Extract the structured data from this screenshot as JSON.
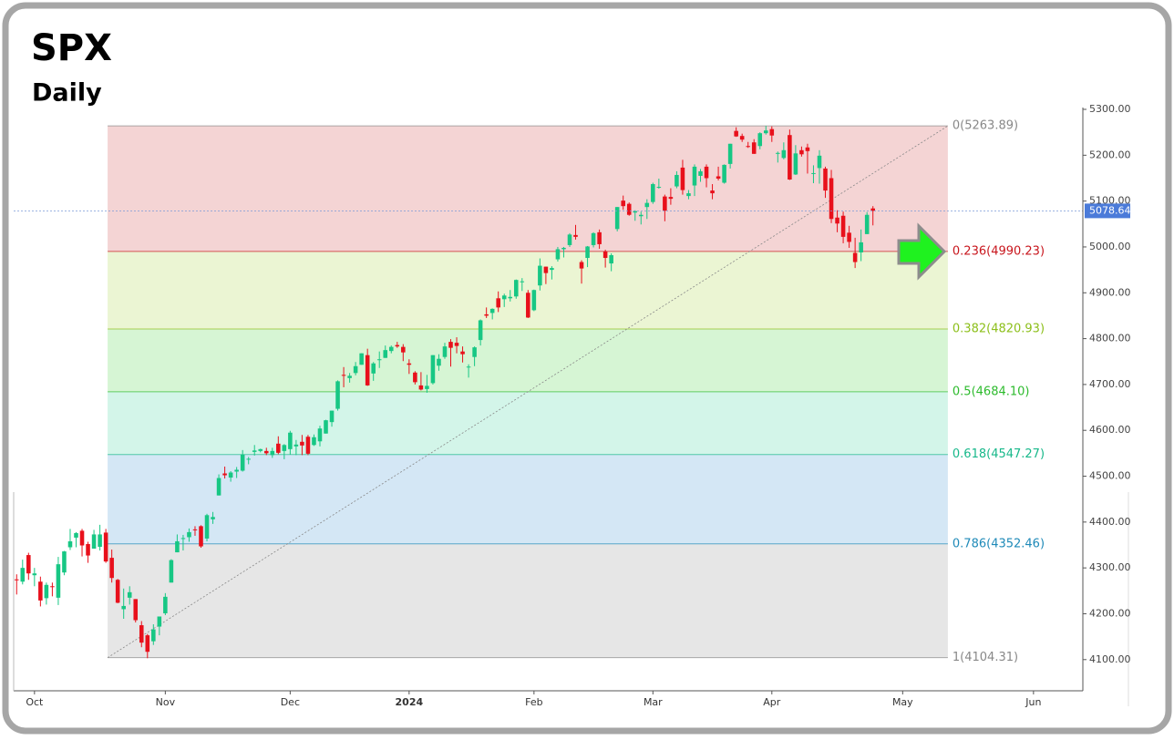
{
  "chart_data": {
    "type": "candlestick",
    "title": "SPX",
    "subtitle": "Daily",
    "up_color": "#17c784",
    "down_color": "#e8101b",
    "ylim": [
      4032,
      5304
    ],
    "yticks": [
      {
        "value": 4100,
        "label": "4100.00"
      },
      {
        "value": 4200,
        "label": "4200.00"
      },
      {
        "value": 4300,
        "label": "4300.00"
      },
      {
        "value": 4400,
        "label": "4400.00"
      },
      {
        "value": 4500,
        "label": "4500.00"
      },
      {
        "value": 4600,
        "label": "4600.00"
      },
      {
        "value": 4700,
        "label": "4700.00"
      },
      {
        "value": 4800,
        "label": "4800.00"
      },
      {
        "value": 4900,
        "label": "4900.00"
      },
      {
        "value": 5000,
        "label": "5000.00"
      },
      {
        "value": 5100,
        "label": "5100.00"
      },
      {
        "value": 5200,
        "label": "5200.00"
      },
      {
        "value": 5300,
        "label": "5300.00"
      }
    ],
    "xlim": [
      -0.5,
      179.3
    ],
    "xticks": [
      {
        "value": 3,
        "label": "Oct"
      },
      {
        "value": 25,
        "label": "Nov"
      },
      {
        "value": 46,
        "label": "Dec"
      },
      {
        "value": 66,
        "label": "2024"
      },
      {
        "value": 87,
        "label": "Feb"
      },
      {
        "value": 107,
        "label": "Mar"
      },
      {
        "value": 127,
        "label": "Apr"
      },
      {
        "value": 149,
        "label": "May"
      },
      {
        "value": 171,
        "label": "Jun"
      }
    ],
    "fib_levels": [
      {
        "label": "0(5263.89)",
        "value": 5263.89,
        "color": "#888888",
        "fill": "#f4d4d4"
      },
      {
        "label": "0.236(4990.23)",
        "value": 4990.23,
        "color": "#c8161d",
        "fill": "#ebf5d3"
      },
      {
        "label": "0.382(4820.93)",
        "value": 4820.93,
        "color": "#8cbf1a",
        "fill": "#d6f5d4"
      },
      {
        "label": "0.5(4684.10)",
        "value": 4684.1,
        "color": "#2dbb2d",
        "fill": "#d3f5e9"
      },
      {
        "label": "0.618(4547.27)",
        "value": 4547.27,
        "color": "#17b88a",
        "fill": "#d4e7f5"
      },
      {
        "label": "0.786(4352.46)",
        "value": 4352.46,
        "color": "#1f8ab8",
        "fill": "#e6e6e6"
      },
      {
        "label": "1(4104.31)",
        "value": 4104.31,
        "color": "#888888"
      }
    ],
    "ohlc": [
      [
        4275,
        4286,
        4242,
        4274
      ],
      [
        4270,
        4318,
        4264,
        4300
      ],
      [
        4328,
        4333,
        4274,
        4288
      ],
      [
        4284,
        4300,
        4260,
        4288
      ],
      [
        4270,
        4281,
        4216,
        4229
      ],
      [
        4234,
        4268,
        4220,
        4263
      ],
      [
        4260,
        4268,
        4238,
        4258
      ],
      [
        4235,
        4324,
        4219,
        4308
      ],
      [
        4290,
        4337,
        4284,
        4336
      ],
      [
        4345,
        4385,
        4339,
        4358
      ],
      [
        4366,
        4378,
        4345,
        4376
      ],
      [
        4381,
        4385,
        4325,
        4349
      ],
      [
        4352,
        4357,
        4311,
        4327
      ],
      [
        4342,
        4383,
        4342,
        4373
      ],
      [
        4346,
        4394,
        4338,
        4373
      ],
      [
        4377,
        4385,
        4311,
        4314
      ],
      [
        4322,
        4340,
        4268,
        4278
      ],
      [
        4274,
        4276,
        4223,
        4224
      ],
      [
        4210,
        4255,
        4189,
        4217
      ],
      [
        4235,
        4260,
        4220,
        4247
      ],
      [
        4232,
        4232,
        4181,
        4186
      ],
      [
        4175,
        4184,
        4127,
        4137
      ],
      [
        4153,
        4156,
        4103,
        4117
      ],
      [
        4140,
        4177,
        4132,
        4166
      ],
      [
        4172,
        4194,
        4153,
        4194
      ],
      [
        4201,
        4245,
        4197,
        4237
      ],
      [
        4268,
        4319,
        4268,
        4317
      ],
      [
        4334,
        4373,
        4334,
        4358
      ],
      [
        4365,
        4372,
        4338,
        4365
      ],
      [
        4367,
        4386,
        4357,
        4378
      ],
      [
        4384,
        4391,
        4370,
        4382
      ],
      [
        4391,
        4393,
        4344,
        4347
      ],
      [
        4364,
        4418,
        4358,
        4415
      ],
      [
        4406,
        4422,
        4396,
        4411
      ],
      [
        4458,
        4504,
        4458,
        4496
      ],
      [
        4506,
        4521,
        4495,
        4502
      ],
      [
        4497,
        4511,
        4488,
        4508
      ],
      [
        4510,
        4520,
        4496,
        4514
      ],
      [
        4512,
        4557,
        4510,
        4547
      ],
      [
        4538,
        4542,
        4526,
        4538
      ],
      [
        4553,
        4568,
        4545,
        4556
      ],
      [
        4555,
        4560,
        4552,
        4559
      ],
      [
        4555,
        4562,
        4546,
        4550
      ],
      [
        4546,
        4562,
        4540,
        4555
      ],
      [
        4571,
        4587,
        4548,
        4551
      ],
      [
        4555,
        4570,
        4537,
        4568
      ],
      [
        4559,
        4599,
        4547,
        4595
      ],
      [
        4565,
        4579,
        4546,
        4569
      ],
      [
        4575,
        4590,
        4546,
        4567
      ],
      [
        4586,
        4590,
        4546,
        4549
      ],
      [
        4568,
        4591,
        4566,
        4585
      ],
      [
        4576,
        4610,
        4565,
        4604
      ],
      [
        4593,
        4623,
        4593,
        4622
      ],
      [
        4618,
        4643,
        4608,
        4643
      ],
      [
        4647,
        4709,
        4643,
        4707
      ],
      [
        4721,
        4738,
        4694,
        4719
      ],
      [
        4714,
        4725,
        4704,
        4719
      ],
      [
        4725,
        4749,
        4720,
        4740
      ],
      [
        4743,
        4768,
        4743,
        4768
      ],
      [
        4764,
        4778,
        4697,
        4698
      ],
      [
        4724,
        4749,
        4708,
        4746
      ],
      [
        4753,
        4772,
        4736,
        4755
      ],
      [
        4758,
        4785,
        4758,
        4775
      ],
      [
        4773,
        4785,
        4768,
        4782
      ],
      [
        4786,
        4793,
        4780,
        4783
      ],
      [
        4782,
        4788,
        4751,
        4770
      ],
      [
        4746,
        4755,
        4723,
        4743
      ],
      [
        4726,
        4729,
        4700,
        4705
      ],
      [
        4698,
        4727,
        4687,
        4689
      ],
      [
        4690,
        4721,
        4682,
        4697
      ],
      [
        4703,
        4764,
        4700,
        4764
      ],
      [
        4741,
        4766,
        4730,
        4756
      ],
      [
        4760,
        4791,
        4756,
        4783
      ],
      [
        4793,
        4799,
        4739,
        4780
      ],
      [
        4791,
        4803,
        4768,
        4784
      ],
      [
        4772,
        4783,
        4748,
        4766
      ],
      [
        4739,
        4744,
        4715,
        4739
      ],
      [
        4760,
        4783,
        4740,
        4781
      ],
      [
        4797,
        4842,
        4785,
        4840
      ],
      [
        4853,
        4868,
        4845,
        4850
      ],
      [
        4856,
        4866,
        4842,
        4865
      ],
      [
        4888,
        4903,
        4858,
        4868
      ],
      [
        4886,
        4898,
        4869,
        4894
      ],
      [
        4888,
        4906,
        4881,
        4891
      ],
      [
        4892,
        4929,
        4887,
        4928
      ],
      [
        4925,
        4932,
        4904,
        4925
      ],
      [
        4900,
        4906,
        4845,
        4846
      ],
      [
        4862,
        4907,
        4860,
        4906
      ],
      [
        4916,
        4975,
        4905,
        4959
      ],
      [
        4957,
        4957,
        4919,
        4943
      ],
      [
        4950,
        4958,
        4929,
        4954
      ],
      [
        4973,
        5000,
        4968,
        4995
      ],
      [
        4995,
        5000,
        4977,
        4998
      ],
      [
        5004,
        5030,
        5000,
        5027
      ],
      [
        5026,
        5048,
        5016,
        5022
      ],
      [
        4967,
        4971,
        4920,
        4953
      ],
      [
        4976,
        5002,
        4956,
        5001
      ],
      [
        5004,
        5032,
        4999,
        5030
      ],
      [
        5032,
        5038,
        4996,
        5006
      ],
      [
        4990,
        4994,
        4955,
        4976
      ],
      [
        4964,
        4986,
        4947,
        4982
      ],
      [
        5039,
        5087,
        5034,
        5087
      ],
      [
        5101,
        5112,
        5081,
        5089
      ],
      [
        5094,
        5097,
        5068,
        5070
      ],
      [
        5075,
        5080,
        5057,
        5078
      ],
      [
        5067,
        5077,
        5049,
        5070
      ],
      [
        5087,
        5104,
        5061,
        5096
      ],
      [
        5098,
        5140,
        5094,
        5137
      ],
      [
        5130,
        5149,
        5127,
        5131
      ],
      [
        5110,
        5114,
        5056,
        5079
      ],
      [
        5109,
        5128,
        5092,
        5105
      ],
      [
        5132,
        5165,
        5128,
        5157
      ],
      [
        5173,
        5190,
        5114,
        5124
      ],
      [
        5111,
        5124,
        5104,
        5117
      ],
      [
        5134,
        5180,
        5111,
        5175
      ],
      [
        5155,
        5170,
        5142,
        5165
      ],
      [
        5175,
        5180,
        5130,
        5150
      ],
      [
        5123,
        5137,
        5104,
        5117
      ],
      [
        5154,
        5175,
        5145,
        5149
      ],
      [
        5140,
        5180,
        5138,
        5179
      ],
      [
        5181,
        5225,
        5171,
        5225
      ],
      [
        5253,
        5261,
        5240,
        5241
      ],
      [
        5242,
        5247,
        5229,
        5234
      ],
      [
        5220,
        5229,
        5216,
        5218
      ],
      [
        5228,
        5235,
        5203,
        5203
      ],
      [
        5220,
        5250,
        5213,
        5248
      ],
      [
        5248,
        5264,
        5245,
        5254
      ],
      [
        5257,
        5263,
        5229,
        5243
      ],
      [
        5204,
        5208,
        5184,
        5205
      ],
      [
        5194,
        5228,
        5191,
        5211
      ],
      [
        5244,
        5256,
        5146,
        5147
      ],
      [
        5158,
        5222,
        5157,
        5204
      ],
      [
        5211,
        5219,
        5197,
        5202
      ],
      [
        5217,
        5225,
        5160,
        5209
      ],
      [
        5160,
        5178,
        5139,
        5161
      ],
      [
        5172,
        5211,
        5138,
        5199
      ],
      [
        5171,
        5175,
        5107,
        5123
      ],
      [
        5150,
        5168,
        5052,
        5061
      ],
      [
        5064,
        5080,
        5032,
        5051
      ],
      [
        5068,
        5077,
        5008,
        5022
      ],
      [
        5031,
        5046,
        4998,
        5011
      ],
      [
        4987,
        5020,
        4954,
        4967
      ],
      [
        4988,
        5038,
        4969,
        5010
      ],
      [
        5028,
        5076,
        5028,
        5070
      ],
      [
        5084,
        5089,
        5047,
        5078.64
      ]
    ]
  }
}
